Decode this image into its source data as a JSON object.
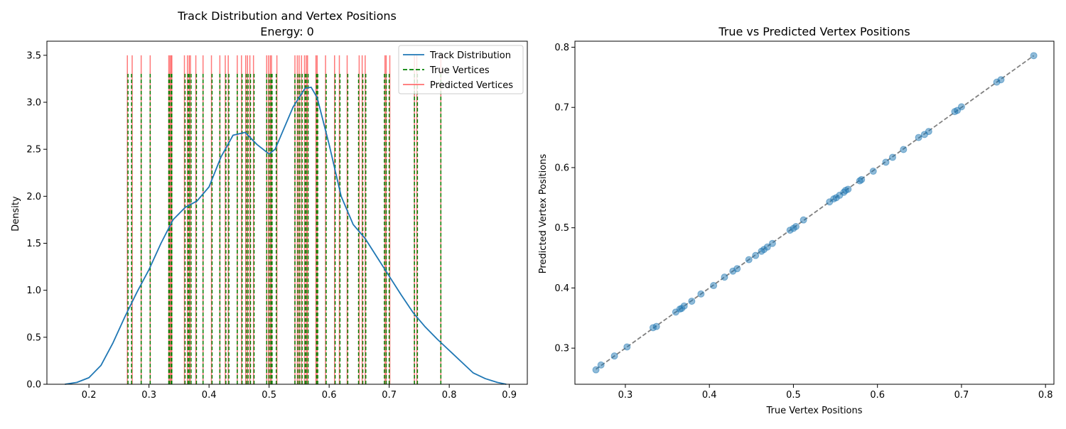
{
  "chart_data": [
    {
      "type": "line",
      "title_line1": "Track Distribution and Vertex Positions",
      "title_line2": "Energy: 0",
      "xlabel": "",
      "ylabel": "Density",
      "xlim": [
        0.13,
        0.93
      ],
      "ylim": [
        0.0,
        3.65
      ],
      "xticks": [
        0.2,
        0.3,
        0.4,
        0.5,
        0.6,
        0.7,
        0.8,
        0.9
      ],
      "xtick_labels": [
        "0.2",
        "0.3",
        "0.4",
        "0.5",
        "0.6",
        "0.7",
        "0.8",
        "0.9"
      ],
      "yticks": [
        0.0,
        0.5,
        1.0,
        1.5,
        2.0,
        2.5,
        3.0,
        3.5
      ],
      "ytick_labels": [
        "0.0",
        "0.5",
        "1.0",
        "1.5",
        "2.0",
        "2.5",
        "3.0",
        "3.5"
      ],
      "grid": false,
      "legend_position": "top-right",
      "series": [
        {
          "name": "Track Distribution",
          "style": "solid line",
          "color": "#1f77b4",
          "x": [
            0.16,
            0.18,
            0.2,
            0.22,
            0.24,
            0.26,
            0.28,
            0.3,
            0.32,
            0.34,
            0.36,
            0.38,
            0.4,
            0.42,
            0.44,
            0.46,
            0.48,
            0.5,
            0.51,
            0.52,
            0.54,
            0.56,
            0.57,
            0.58,
            0.6,
            0.62,
            0.64,
            0.66,
            0.68,
            0.7,
            0.72,
            0.74,
            0.76,
            0.78,
            0.8,
            0.82,
            0.84,
            0.86,
            0.88,
            0.895
          ],
          "y": [
            0.0,
            0.02,
            0.07,
            0.2,
            0.44,
            0.72,
            0.98,
            1.22,
            1.5,
            1.75,
            1.88,
            1.95,
            2.1,
            2.42,
            2.65,
            2.68,
            2.55,
            2.45,
            2.5,
            2.65,
            2.95,
            3.15,
            3.16,
            3.05,
            2.55,
            2.0,
            1.7,
            1.55,
            1.35,
            1.15,
            0.95,
            0.76,
            0.61,
            0.48,
            0.36,
            0.24,
            0.12,
            0.06,
            0.02,
            0.0
          ]
        },
        {
          "name": "True Vertices",
          "style": "dashed vertical lines",
          "color": "#008000",
          "line_height": 3.32,
          "x": [
            0.265,
            0.271,
            0.287,
            0.302,
            0.333,
            0.334,
            0.337,
            0.338,
            0.36,
            0.365,
            0.367,
            0.37,
            0.379,
            0.39,
            0.405,
            0.418,
            0.428,
            0.433,
            0.447,
            0.455,
            0.462,
            0.465,
            0.469,
            0.475,
            0.496,
            0.5,
            0.503,
            0.505,
            0.512,
            0.543,
            0.548,
            0.551,
            0.555,
            0.56,
            0.562,
            0.565,
            0.579,
            0.581,
            0.595,
            0.61,
            0.618,
            0.631,
            0.649,
            0.656,
            0.661,
            0.692,
            0.695,
            0.7,
            0.742,
            0.747,
            0.786
          ]
        },
        {
          "name": "Predicted Vertices",
          "style": "solid vertical lines",
          "color": "#ff4040",
          "line_height": 3.5,
          "x": [
            0.264,
            0.272,
            0.287,
            0.302,
            0.333,
            0.335,
            0.337,
            0.338,
            0.359,
            0.364,
            0.367,
            0.369,
            0.378,
            0.39,
            0.404,
            0.418,
            0.427,
            0.432,
            0.447,
            0.454,
            0.461,
            0.464,
            0.468,
            0.474,
            0.496,
            0.499,
            0.502,
            0.504,
            0.513,
            0.543,
            0.547,
            0.55,
            0.554,
            0.559,
            0.562,
            0.564,
            0.578,
            0.58,
            0.594,
            0.609,
            0.617,
            0.63,
            0.65,
            0.655,
            0.66,
            0.693,
            0.695,
            0.701,
            0.742,
            0.746,
            0.786
          ]
        }
      ]
    },
    {
      "type": "scatter",
      "title": "True vs Predicted Vertex Positions",
      "xlabel": "True Vertex Positions",
      "ylabel": "Predicted Vertex Positions",
      "xlim": [
        0.24,
        0.81
      ],
      "ylim": [
        0.24,
        0.81
      ],
      "xticks": [
        0.3,
        0.4,
        0.5,
        0.6,
        0.7,
        0.8
      ],
      "xtick_labels": [
        "0.3",
        "0.4",
        "0.5",
        "0.6",
        "0.7",
        "0.8"
      ],
      "yticks": [
        0.3,
        0.4,
        0.5,
        0.6,
        0.7,
        0.8
      ],
      "ytick_labels": [
        "0.3",
        "0.4",
        "0.5",
        "0.6",
        "0.7",
        "0.8"
      ],
      "grid": false,
      "point_color": "#1f77b4",
      "reference_line": {
        "style": "dashed",
        "color": "#808080",
        "from": [
          0.265,
          0.265
        ],
        "to": [
          0.786,
          0.786
        ]
      },
      "points": [
        [
          0.265,
          0.264
        ],
        [
          0.271,
          0.272
        ],
        [
          0.287,
          0.287
        ],
        [
          0.302,
          0.302
        ],
        [
          0.333,
          0.334
        ],
        [
          0.337,
          0.336
        ],
        [
          0.36,
          0.36
        ],
        [
          0.365,
          0.365
        ],
        [
          0.367,
          0.366
        ],
        [
          0.37,
          0.37
        ],
        [
          0.379,
          0.378
        ],
        [
          0.39,
          0.39
        ],
        [
          0.405,
          0.404
        ],
        [
          0.418,
          0.418
        ],
        [
          0.428,
          0.428
        ],
        [
          0.433,
          0.432
        ],
        [
          0.447,
          0.447
        ],
        [
          0.455,
          0.454
        ],
        [
          0.462,
          0.461
        ],
        [
          0.465,
          0.464
        ],
        [
          0.469,
          0.468
        ],
        [
          0.475,
          0.474
        ],
        [
          0.496,
          0.496
        ],
        [
          0.5,
          0.499
        ],
        [
          0.503,
          0.502
        ],
        [
          0.512,
          0.513
        ],
        [
          0.543,
          0.543
        ],
        [
          0.548,
          0.548
        ],
        [
          0.551,
          0.55
        ],
        [
          0.555,
          0.554
        ],
        [
          0.56,
          0.559
        ],
        [
          0.562,
          0.562
        ],
        [
          0.565,
          0.564
        ],
        [
          0.579,
          0.578
        ],
        [
          0.581,
          0.58
        ],
        [
          0.595,
          0.594
        ],
        [
          0.61,
          0.609
        ],
        [
          0.618,
          0.617
        ],
        [
          0.631,
          0.63
        ],
        [
          0.649,
          0.65
        ],
        [
          0.656,
          0.655
        ],
        [
          0.661,
          0.66
        ],
        [
          0.692,
          0.693
        ],
        [
          0.695,
          0.695
        ],
        [
          0.7,
          0.701
        ],
        [
          0.742,
          0.742
        ],
        [
          0.747,
          0.746
        ],
        [
          0.786,
          0.786
        ]
      ]
    }
  ]
}
